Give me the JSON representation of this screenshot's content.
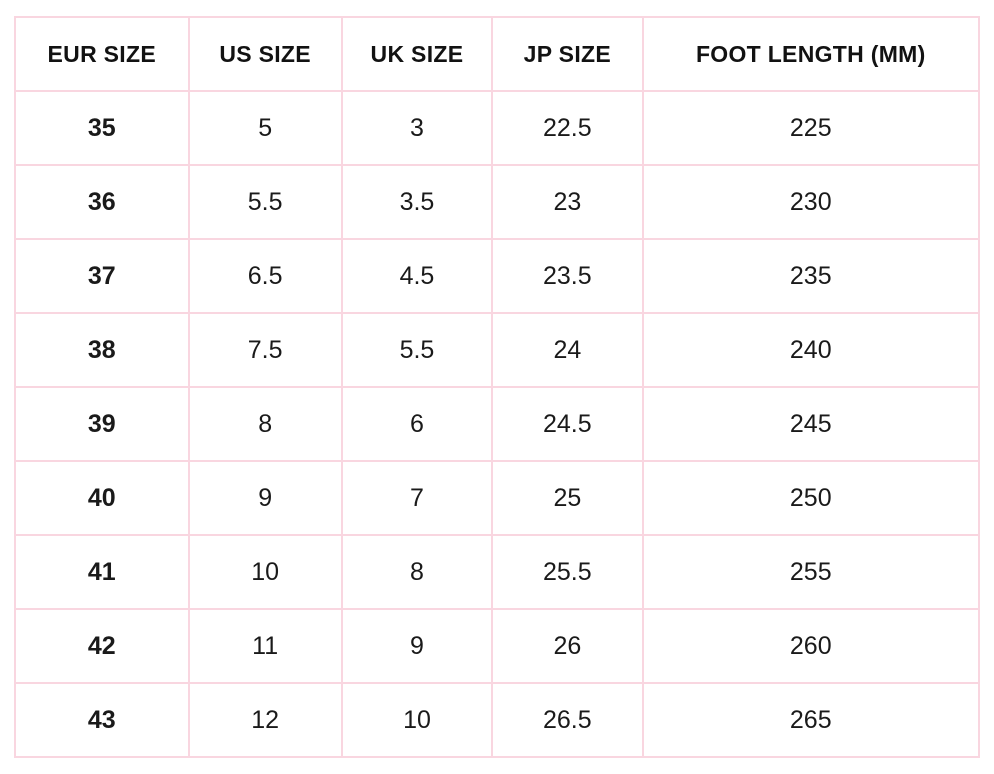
{
  "table": {
    "headers": [
      "EUR SIZE",
      "US SIZE",
      "UK SIZE",
      "JP SIZE",
      "FOOT LENGTH (MM)"
    ],
    "rows": [
      [
        "35",
        "5",
        "3",
        "22.5",
        "225"
      ],
      [
        "36",
        "5.5",
        "3.5",
        "23",
        "230"
      ],
      [
        "37",
        "6.5",
        "4.5",
        "23.5",
        "235"
      ],
      [
        "38",
        "7.5",
        "5.5",
        "24",
        "240"
      ],
      [
        "39",
        "8",
        "6",
        "24.5",
        "245"
      ],
      [
        "40",
        "9",
        "7",
        "25",
        "250"
      ],
      [
        "41",
        "10",
        "8",
        "25.5",
        "255"
      ],
      [
        "42",
        "11",
        "9",
        "26",
        "260"
      ],
      [
        "43",
        "12",
        "10",
        "26.5",
        "265"
      ]
    ]
  },
  "chart_data": {
    "type": "table",
    "title": "",
    "columns": [
      "EUR SIZE",
      "US SIZE",
      "UK SIZE",
      "JP SIZE",
      "FOOT LENGTH (MM)"
    ],
    "rows": [
      [
        "35",
        "5",
        "3",
        "22.5",
        "225"
      ],
      [
        "36",
        "5.5",
        "3.5",
        "23",
        "230"
      ],
      [
        "37",
        "6.5",
        "4.5",
        "23.5",
        "235"
      ],
      [
        "38",
        "7.5",
        "5.5",
        "24",
        "240"
      ],
      [
        "39",
        "8",
        "6",
        "24.5",
        "245"
      ],
      [
        "40",
        "9",
        "7",
        "25",
        "250"
      ],
      [
        "41",
        "10",
        "8",
        "25.5",
        "255"
      ],
      [
        "42",
        "11",
        "9",
        "26",
        "260"
      ],
      [
        "43",
        "12",
        "10",
        "26.5",
        "265"
      ]
    ]
  },
  "colors": {
    "border": "#f9d6e0",
    "text": "#121212",
    "background": "#ffffff"
  }
}
